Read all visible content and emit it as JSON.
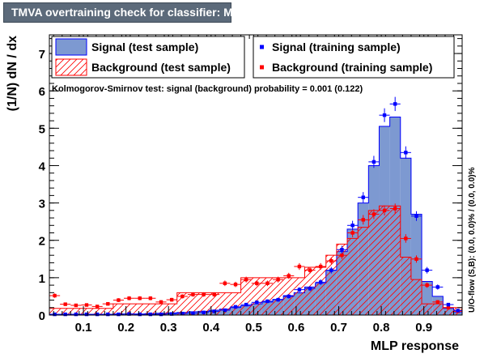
{
  "chart_data": {
    "type": "histogram",
    "title": "TMVA overtraining check for classifier: MLP",
    "xlabel": "MLP response",
    "ylabel": "(1/N) dN / dx",
    "side_label": "U/O-flow (S,B): (0.0, 0.0)% / (0.0, 0.0)%",
    "ks_text": "Kolmogorov-Smirnov test: signal (background) probability = 0.001 (0.122)",
    "xlim": [
      0.02,
      0.99
    ],
    "ylim": [
      0,
      7.5
    ],
    "x_ticks": [
      0.1,
      0.2,
      0.3,
      0.4,
      0.5,
      0.6,
      0.7,
      0.8,
      0.9
    ],
    "x_tick_labels": [
      "0.1",
      "0.2",
      "0.3",
      "0.4",
      "0.5",
      "0.6",
      "0.7",
      "0.8",
      "0.9"
    ],
    "y_ticks": [
      0,
      1,
      2,
      3,
      4,
      5,
      6,
      7
    ],
    "y_tick_labels": [
      "0",
      "1",
      "2",
      "3",
      "4",
      "5",
      "6",
      "7"
    ],
    "bins": [
      0.02,
      0.045,
      0.07,
      0.095,
      0.12,
      0.145,
      0.17,
      0.195,
      0.22,
      0.245,
      0.27,
      0.295,
      0.32,
      0.345,
      0.37,
      0.395,
      0.42,
      0.445,
      0.47,
      0.495,
      0.52,
      0.545,
      0.57,
      0.595,
      0.62,
      0.645,
      0.67,
      0.695,
      0.72,
      0.745,
      0.77,
      0.795,
      0.82,
      0.845,
      0.87,
      0.895,
      0.92,
      0.945,
      0.97,
      0.99
    ],
    "legend": {
      "placement": "top",
      "entries": [
        {
          "label": "Signal (test sample)",
          "style": "filled",
          "color": "#7d99d1",
          "edge": "#0000ff"
        },
        {
          "label": "Signal (training sample)",
          "style": "marker",
          "color": "#0000ff"
        },
        {
          "label": "Background (test sample)",
          "style": "hatched",
          "color": "#ff0000"
        },
        {
          "label": "Background (training sample)",
          "style": "marker",
          "color": "#ff0000"
        }
      ]
    },
    "series": [
      {
        "name": "Signal (test sample)",
        "style": "filled",
        "color": "#7d99d1",
        "edge": "#0000ff",
        "values": [
          0.02,
          0.02,
          0.02,
          0.02,
          0.02,
          0.02,
          0.03,
          0.03,
          0.03,
          0.04,
          0.05,
          0.06,
          0.07,
          0.09,
          0.1,
          0.13,
          0.16,
          0.2,
          0.25,
          0.3,
          0.35,
          0.42,
          0.52,
          0.6,
          0.75,
          0.85,
          1.2,
          1.7,
          2.3,
          3.0,
          4.0,
          5.05,
          5.3,
          4.2,
          2.7,
          0.9,
          0.5,
          0.18,
          0.07
        ]
      },
      {
        "name": "Background (test sample)",
        "style": "hatched",
        "color": "#ff0000",
        "values": [
          0.18,
          0.18,
          0.18,
          0.18,
          0.18,
          0.18,
          0.3,
          0.3,
          0.3,
          0.3,
          0.3,
          0.3,
          0.6,
          0.6,
          0.6,
          0.6,
          0.6,
          0.6,
          1.0,
          1.0,
          1.0,
          1.0,
          1.0,
          1.0,
          1.28,
          1.28,
          1.6,
          1.9,
          2.05,
          2.35,
          2.8,
          2.92,
          2.92,
          1.55,
          0.95,
          0.3,
          0.3,
          0.2,
          0.2
        ]
      },
      {
        "name": "Signal (training sample)",
        "style": "marker",
        "color": "#0000ff",
        "values": [
          0.02,
          0.02,
          0.02,
          0.02,
          0.02,
          0.02,
          0.02,
          0.03,
          0.02,
          0.02,
          0.02,
          0.03,
          0.04,
          0.05,
          0.07,
          0.1,
          0.13,
          0.22,
          0.28,
          0.34,
          0.37,
          0.41,
          0.5,
          0.68,
          0.71,
          0.88,
          1.2,
          1.75,
          2.4,
          3.15,
          4.1,
          5.35,
          5.65,
          4.35,
          2.65,
          1.2,
          0.75,
          0.28,
          0.12
        ]
      },
      {
        "name": "Background (training sample)",
        "style": "marker",
        "color": "#ff0000",
        "values": [
          0.52,
          0.29,
          0.26,
          0.27,
          0.23,
          0.3,
          0.4,
          0.45,
          0.45,
          0.45,
          0.35,
          0.41,
          0.5,
          0.55,
          0.55,
          0.55,
          0.85,
          0.82,
          0.95,
          0.85,
          0.85,
          0.95,
          1.05,
          1.3,
          1.2,
          1.3,
          1.45,
          1.6,
          2.2,
          2.55,
          2.7,
          2.8,
          2.85,
          2.05,
          1.5,
          0.8,
          0.35,
          0.2,
          0.1
        ]
      }
    ]
  }
}
